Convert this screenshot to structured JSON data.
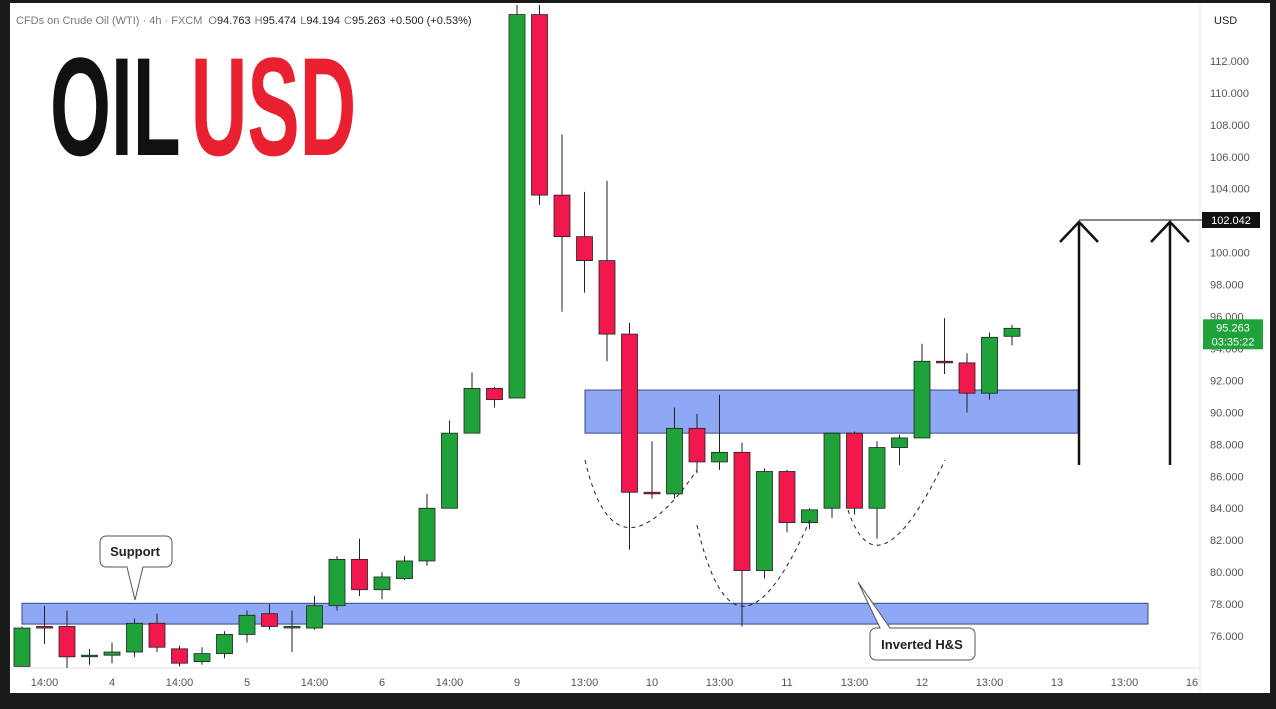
{
  "header": {
    "symbol": "CFDs on Crude Oil (WTI) · 4h · FXCM",
    "o_label": "O",
    "o": "94.763",
    "h_label": "H",
    "h": "95.474",
    "l_label": "L",
    "l": "94.194",
    "c_label": "C",
    "c": "95.263",
    "change": "+0.500 (+0.53%)"
  },
  "logo": {
    "part1": "OIL",
    "part2": "USD"
  },
  "chart_data": {
    "type": "candlestick",
    "categories": [
      null,
      "14:00",
      null,
      null,
      "4",
      null,
      null,
      "14:00",
      null,
      null,
      "5",
      null,
      null,
      "14:00",
      null,
      null,
      "6",
      null,
      null,
      "14:00",
      null,
      null,
      "9",
      null,
      null,
      "13:00",
      null,
      null,
      "10",
      null,
      null,
      "13:00",
      null,
      null,
      "11",
      null,
      null,
      "13:00",
      null,
      null,
      "12",
      null,
      null,
      "13:00",
      null,
      null,
      "13",
      null,
      null,
      "13:00",
      null,
      null,
      "16"
    ],
    "open": [
      74.1,
      76.6,
      76.6,
      74.8,
      74.8,
      75.0,
      76.8,
      75.2,
      74.4,
      74.9,
      76.1,
      77.4,
      76.6,
      76.5,
      77.9,
      80.8,
      78.9,
      79.6,
      80.7,
      84.0,
      88.7,
      91.5,
      90.9,
      114.9,
      103.6,
      101.0,
      99.5,
      94.9,
      85.0,
      84.9,
      89.0,
      86.9,
      87.5,
      80.1,
      86.3,
      83.1,
      84.0,
      88.7,
      84.0,
      87.8,
      88.4,
      93.2,
      93.1,
      91.2,
      94.763,
      null,
      null,
      null,
      null,
      null,
      null,
      null,
      null
    ],
    "high": [
      76.6,
      77.9,
      77.6,
      75.2,
      75.6,
      77.1,
      77.4,
      75.4,
      75.3,
      76.3,
      77.6,
      78.0,
      77.6,
      78.5,
      81.0,
      82.1,
      80.0,
      81.0,
      84.9,
      89.5,
      92.5,
      91.6,
      115.5,
      115.5,
      107.4,
      103.8,
      104.5,
      95.6,
      88.2,
      90.3,
      89.9,
      91.1,
      88.1,
      86.5,
      86.4,
      84.0,
      88.7,
      88.8,
      88.2,
      88.6,
      94.3,
      95.9,
      93.7,
      95.0,
      95.474,
      null,
      null,
      null,
      null,
      null,
      null,
      null,
      null
    ],
    "low": [
      74.1,
      75.5,
      74.0,
      74.2,
      74.3,
      74.7,
      75.0,
      74.1,
      74.2,
      74.6,
      75.6,
      76.4,
      75.0,
      76.4,
      77.6,
      78.5,
      78.3,
      79.5,
      80.4,
      84.0,
      88.7,
      90.3,
      90.9,
      103.0,
      96.3,
      97.5,
      93.2,
      81.4,
      84.6,
      84.6,
      86.2,
      86.4,
      76.6,
      79.6,
      82.5,
      82.7,
      83.4,
      83.6,
      82.1,
      86.7,
      88.4,
      92.4,
      90.0,
      90.8,
      94.194,
      null,
      null,
      null,
      null,
      null,
      null,
      null,
      null
    ],
    "close": [
      76.5,
      76.5,
      74.7,
      74.8,
      75.0,
      76.8,
      75.3,
      74.3,
      74.9,
      76.1,
      77.3,
      76.6,
      76.6,
      77.9,
      80.8,
      78.9,
      79.7,
      80.7,
      84.0,
      88.7,
      91.5,
      90.8,
      114.9,
      103.6,
      101.0,
      99.5,
      94.9,
      85.0,
      84.9,
      89.0,
      86.9,
      87.5,
      80.1,
      86.3,
      83.1,
      83.9,
      88.7,
      84.0,
      87.8,
      88.4,
      93.2,
      93.1,
      91.2,
      94.7,
      95.263,
      null,
      null,
      null,
      null,
      null,
      null,
      null,
      null
    ],
    "up_color": "#1fa23a",
    "down_color": "#f0184c",
    "ylim": [
      74.0,
      115.5
    ],
    "yticks": [
      {
        "value": 76,
        "label": "76.000"
      },
      {
        "value": 78,
        "label": "78.000"
      },
      {
        "value": 80,
        "label": "80.000"
      },
      {
        "value": 82,
        "label": "82.000"
      },
      {
        "value": 84,
        "label": "84.000"
      },
      {
        "value": 86,
        "label": "86.000"
      },
      {
        "value": 88,
        "label": "88.000"
      },
      {
        "value": 90,
        "label": "90.000"
      },
      {
        "value": 92,
        "label": "92.000"
      },
      {
        "value": 94,
        "label": "94.000"
      },
      {
        "value": 96,
        "label": "96.000"
      },
      {
        "value": 98,
        "label": "98.000"
      },
      {
        "value": 100,
        "label": "100.000"
      },
      {
        "value": 102,
        "label": "102.000"
      },
      {
        "value": 104,
        "label": "104.000"
      },
      {
        "value": 106,
        "label": "106.000"
      },
      {
        "value": 108,
        "label": "108.000"
      },
      {
        "value": 110,
        "label": "110.000"
      },
      {
        "value": 112,
        "label": "112.000"
      }
    ],
    "currency": "USD",
    "zones": [
      {
        "low": 76.75,
        "high": 78.05,
        "color": "#8fa8f5"
      },
      {
        "low": 88.7,
        "high": 91.4,
        "color": "#8fa8f5"
      }
    ],
    "target": {
      "value": 102.042,
      "label": "102.042"
    },
    "last_price": {
      "value": 95.263,
      "label": "95.263",
      "countdown": "03:35:22"
    },
    "annotations": {
      "support": "Support",
      "pattern": "Inverted H&S"
    }
  }
}
